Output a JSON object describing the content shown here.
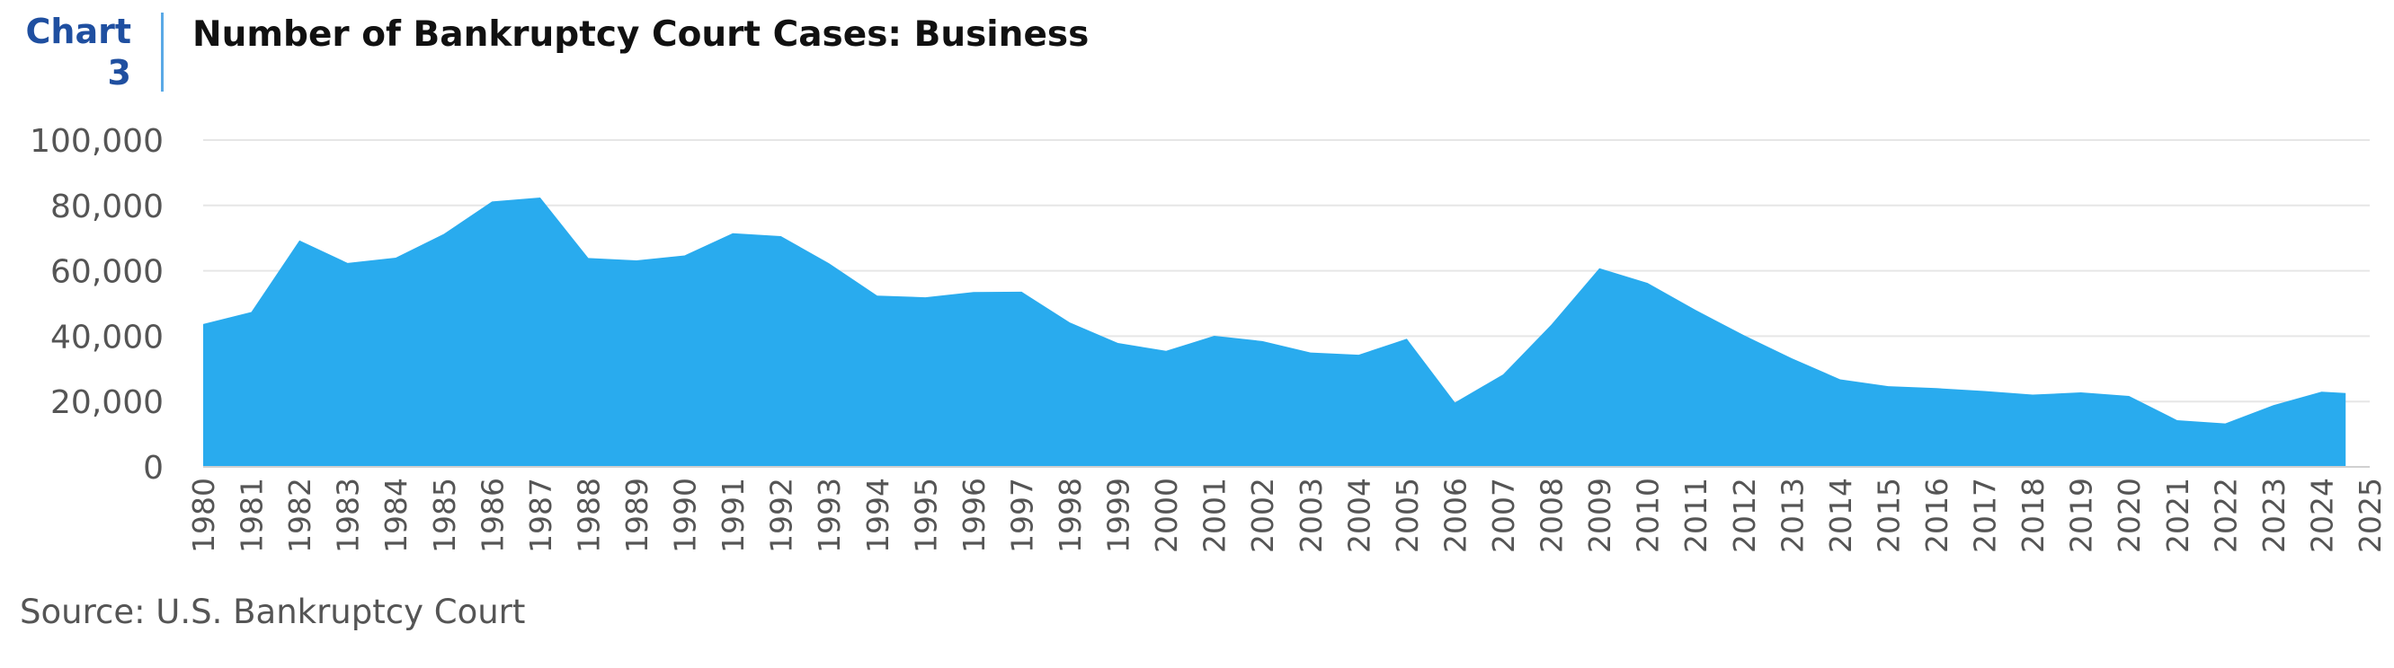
{
  "header": {
    "chart_label_line1": "Chart",
    "chart_label_line2": "3",
    "title": "Number of Bankruptcy Court Cases: Business"
  },
  "source": "Source: U.S. Bankruptcy Court",
  "colors": {
    "fill": "#29abee",
    "grid": "#e6e6e6",
    "label": "#1f4fa0"
  },
  "chart_data": {
    "type": "area",
    "title": "Number of Bankruptcy Court Cases: Business",
    "xlabel": "",
    "ylabel": "",
    "xlim": [
      1980,
      2025
    ],
    "ylim": [
      0,
      100000
    ],
    "yticks": [
      0,
      20000,
      40000,
      60000,
      80000,
      100000
    ],
    "ytick_labels": [
      "0",
      "20,000",
      "40,000",
      "60,000",
      "80,000",
      "100,000"
    ],
    "xticks": [
      1980,
      1981,
      1982,
      1983,
      1984,
      1985,
      1986,
      1987,
      1988,
      1989,
      1990,
      1991,
      1992,
      1993,
      1994,
      1995,
      1996,
      1997,
      1998,
      1999,
      2000,
      2001,
      2002,
      2003,
      2004,
      2005,
      2006,
      2007,
      2008,
      2009,
      2010,
      2011,
      2012,
      2013,
      2014,
      2015,
      2016,
      2017,
      2018,
      2019,
      2020,
      2021,
      2022,
      2023,
      2024,
      2025
    ],
    "grid": true,
    "legend": "none",
    "series": [
      {
        "x": [
          1980,
          1981,
          1982,
          1983,
          1984,
          1985,
          1986,
          1987,
          1988,
          1989,
          1990,
          1991,
          1992,
          1993,
          1994,
          1995,
          1996,
          1997,
          1998,
          1999,
          2000,
          2001,
          2002,
          2003,
          2004,
          2005,
          2006,
          2007,
          2008,
          2009,
          2010,
          2011,
          2012,
          2013,
          2014,
          2015,
          2016,
          2017,
          2018,
          2019,
          2020,
          2021,
          2022,
          2023,
          2024,
          2024.5
        ],
        "y": [
          43700,
          47400,
          69300,
          62400,
          64000,
          71300,
          81200,
          82400,
          63900,
          63200,
          64700,
          71500,
          70600,
          62300,
          52400,
          51900,
          53500,
          53600,
          44200,
          37900,
          35500,
          40100,
          38500,
          35000,
          34300,
          39200,
          19700,
          28300,
          43500,
          60800,
          56300,
          48000,
          40300,
          33200,
          26800,
          24700,
          24100,
          23200,
          22100,
          22800,
          21700,
          14300,
          13300,
          18900,
          23000,
          22600
        ]
      }
    ]
  }
}
